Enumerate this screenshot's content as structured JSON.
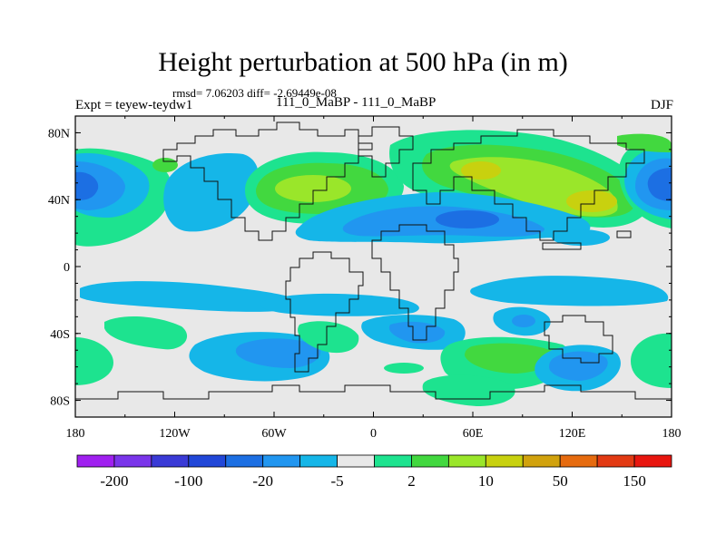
{
  "title": "Height perturbation at 500 hPa (in m)",
  "stats": "rmsd= 7.06203  diff= -2.69449e-08",
  "experiment": "Expt = teyew-teydw1",
  "center_label": "111_0_MaBP - 111_0_MaBP",
  "season": "DJF",
  "map": {
    "type": "filled-contour",
    "variable": "height perturbation",
    "units": "m",
    "level_hPa": 500,
    "lon_range": [
      -180,
      180
    ],
    "lat_range": [
      -90,
      90
    ],
    "lat_ticks": [
      "80N",
      "40N",
      "0",
      "40S",
      "80S"
    ],
    "lon_ticks": [
      "180",
      "120W",
      "60W",
      "0",
      "60E",
      "120E",
      "180"
    ]
  },
  "colorbar": {
    "colors": [
      "#a020f0",
      "#7a35ea",
      "#3a3ad6",
      "#2147d8",
      "#1c6fe3",
      "#2196f0",
      "#15b6e8",
      "#e8e8e8",
      "#1de38f",
      "#42d83f",
      "#9ae62a",
      "#c8d10f",
      "#d1a20d",
      "#e66b0f",
      "#e23a13",
      "#e8160f"
    ],
    "tick_labels": [
      "-200",
      "-100",
      "-20",
      "-5",
      "2",
      "10",
      "50",
      "150"
    ]
  }
}
